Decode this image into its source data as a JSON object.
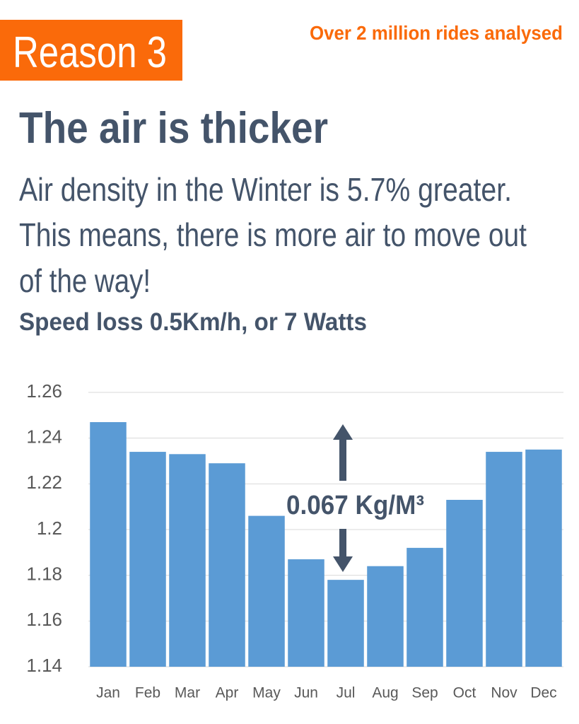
{
  "badge": "Reason 3",
  "tagline": "Over 2 million rides analysed",
  "headline": "The air is thicker",
  "body": [
    "Air density in the Winter is 5.7% greater.",
    "This means, there is more air to move out",
    "of the way!"
  ],
  "subhead": "Speed loss 0.5Km/h, or 7 Watts",
  "chart_data": {
    "type": "bar",
    "categories": [
      "Jan",
      "Feb",
      "Mar",
      "Apr",
      "May",
      "Jun",
      "Jul",
      "Aug",
      "Sep",
      "Oct",
      "Nov",
      "Dec"
    ],
    "values": [
      1.247,
      1.234,
      1.233,
      1.229,
      1.206,
      1.187,
      1.178,
      1.184,
      1.192,
      1.213,
      1.234,
      1.235
    ],
    "color": "#5b9bd5",
    "ylim": [
      1.14,
      1.26
    ],
    "yticks": [
      1.14,
      1.16,
      1.18,
      1.2,
      1.22,
      1.24,
      1.26
    ],
    "grid": true,
    "annotation": "0.067 Kg/M³"
  }
}
